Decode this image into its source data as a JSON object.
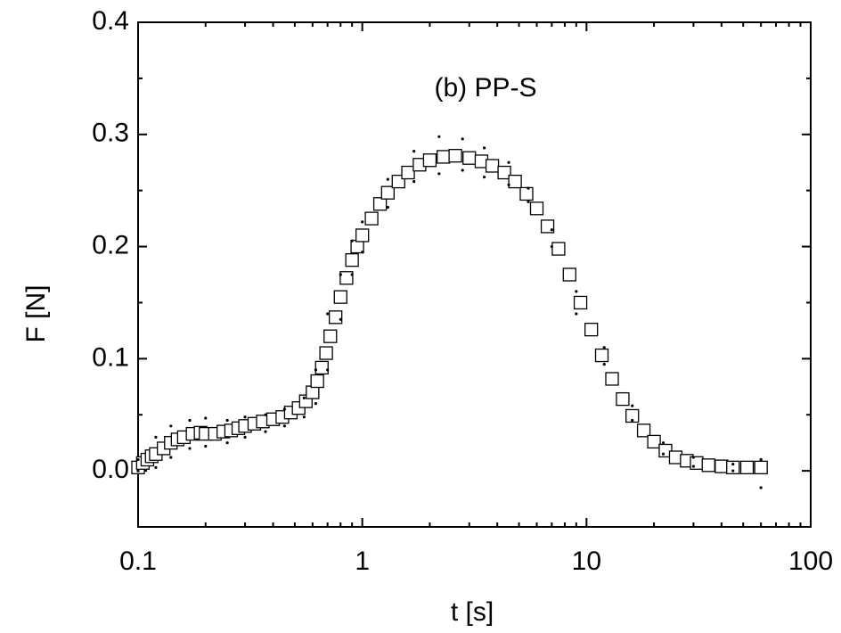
{
  "chart_data": {
    "type": "scatter",
    "annotation": "(b) PP-S",
    "x_label": "t [s]",
    "y_label": "F [N]",
    "xscale": "log",
    "xlim": [
      0.1,
      100
    ],
    "xticks": [
      0.1,
      1,
      10,
      100
    ],
    "ylim": [
      -0.05,
      0.4
    ],
    "yticks": [
      {
        "value": 0,
        "label": "0.0"
      },
      0.1,
      0.2,
      0.3,
      0.4
    ],
    "series": [
      {
        "marker": "square",
        "color": "#000000",
        "x": [
          0.1,
          0.105,
          0.11,
          0.115,
          0.12,
          0.13,
          0.14,
          0.15,
          0.16,
          0.175,
          0.19,
          0.2,
          0.22,
          0.24,
          0.26,
          0.28,
          0.3,
          0.33,
          0.36,
          0.4,
          0.44,
          0.48,
          0.52,
          0.56,
          0.6,
          0.63,
          0.66,
          0.69,
          0.72,
          0.76,
          0.8,
          0.85,
          0.9,
          0.95,
          1.0,
          1.1,
          1.2,
          1.3,
          1.45,
          1.6,
          1.8,
          2.0,
          2.3,
          2.6,
          3.0,
          3.4,
          3.8,
          4.3,
          4.8,
          5.4,
          6.0,
          6.7,
          7.5,
          8.4,
          9.4,
          10.5,
          11.7,
          13,
          14.5,
          16,
          18,
          20,
          22.5,
          25,
          28,
          31,
          35,
          40,
          45,
          52,
          60
        ],
        "values": [
          0.003,
          0.007,
          0.01,
          0.013,
          0.015,
          0.02,
          0.025,
          0.028,
          0.03,
          0.033,
          0.034,
          0.033,
          0.033,
          0.035,
          0.036,
          0.038,
          0.04,
          0.042,
          0.044,
          0.046,
          0.048,
          0.052,
          0.056,
          0.062,
          0.07,
          0.08,
          0.092,
          0.105,
          0.12,
          0.137,
          0.155,
          0.172,
          0.188,
          0.2,
          0.21,
          0.225,
          0.238,
          0.248,
          0.258,
          0.266,
          0.273,
          0.277,
          0.28,
          0.281,
          0.279,
          0.276,
          0.272,
          0.266,
          0.258,
          0.247,
          0.234,
          0.218,
          0.198,
          0.175,
          0.15,
          0.126,
          0.103,
          0.082,
          0.064,
          0.049,
          0.036,
          0.026,
          0.018,
          0.012,
          0.009,
          0.007,
          0.005,
          0.004,
          0.003,
          0.003,
          0.003
        ]
      },
      {
        "marker": "dot",
        "color": "#000000",
        "x": [
          0.1,
          0.12,
          0.14,
          0.17,
          0.2,
          0.25,
          0.3,
          0.37,
          0.45,
          0.55,
          0.62,
          0.7,
          0.8,
          0.9,
          1.0,
          1.3,
          1.7,
          2.2,
          2.8,
          3.5,
          4.5,
          5.5,
          7,
          9,
          12,
          16,
          22,
          30,
          45,
          60
        ],
        "values": [
          0.01,
          0.03,
          0.04,
          0.045,
          0.047,
          0.045,
          0.048,
          0.05,
          0.055,
          0.065,
          0.09,
          0.14,
          0.175,
          0.205,
          0.222,
          0.26,
          0.285,
          0.298,
          0.296,
          0.288,
          0.275,
          0.252,
          0.215,
          0.16,
          0.11,
          0.058,
          0.025,
          0.012,
          0.006,
          0.01
        ]
      },
      {
        "marker": "dot",
        "color": "#000000",
        "x": [
          0.1,
          0.12,
          0.14,
          0.17,
          0.2,
          0.25,
          0.3,
          0.37,
          0.45,
          0.55,
          0.62,
          0.7,
          0.8,
          0.9,
          1.0,
          1.3,
          1.7,
          2.2,
          2.8,
          3.5,
          4.5,
          5.5,
          7,
          9,
          12,
          16,
          22,
          30,
          45,
          60
        ],
        "values": [
          0.0,
          0.003,
          0.012,
          0.02,
          0.022,
          0.025,
          0.03,
          0.035,
          0.04,
          0.048,
          0.06,
          0.09,
          0.135,
          0.175,
          0.195,
          0.235,
          0.258,
          0.265,
          0.268,
          0.262,
          0.255,
          0.24,
          0.2,
          0.14,
          0.095,
          0.045,
          0.015,
          0.004,
          0.0,
          -0.015
        ]
      }
    ]
  }
}
